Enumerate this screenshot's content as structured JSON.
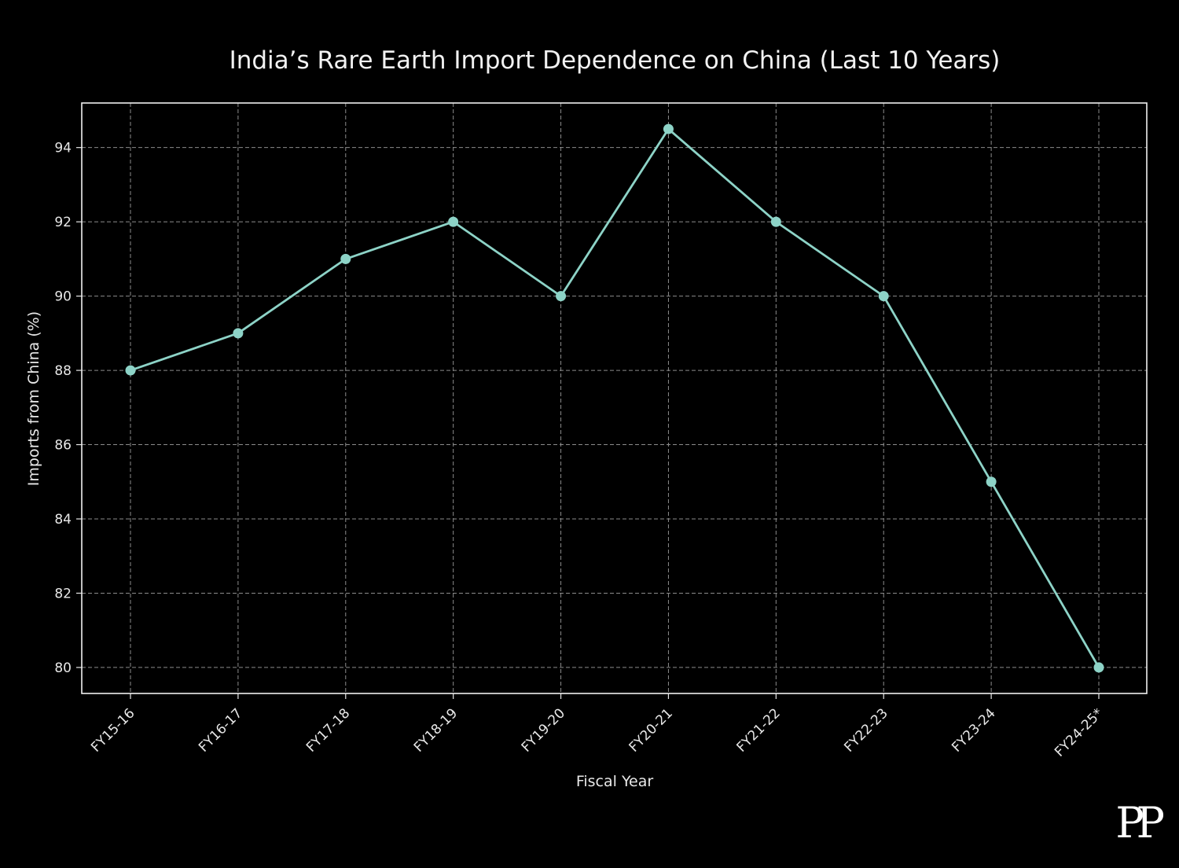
{
  "chart_data": {
    "type": "line",
    "title": "India’s Rare Earth Import Dependence on China (Last 10 Years)",
    "xlabel": "Fiscal Year",
    "ylabel": "Imports from China (%)",
    "categories": [
      "FY15-16",
      "FY16-17",
      "FY17-18",
      "FY18-19",
      "FY19-20",
      "FY20-21",
      "FY21-22",
      "FY22-23",
      "FY23-24",
      "FY24-25*"
    ],
    "series": [
      {
        "values": [
          88,
          89,
          91,
          92,
          90,
          94.5,
          92,
          90,
          85,
          80
        ],
        "color": "#8dd3c7",
        "marker": "circle"
      }
    ],
    "ylim": [
      79.3,
      95.2
    ],
    "yticks": [
      80,
      82,
      84,
      86,
      88,
      90,
      92,
      94
    ],
    "grid": true,
    "grid_style": "dashed",
    "legend": "none",
    "background": "#000000",
    "text_color": "#e8e8e8"
  },
  "logo": {
    "text": "PP"
  }
}
